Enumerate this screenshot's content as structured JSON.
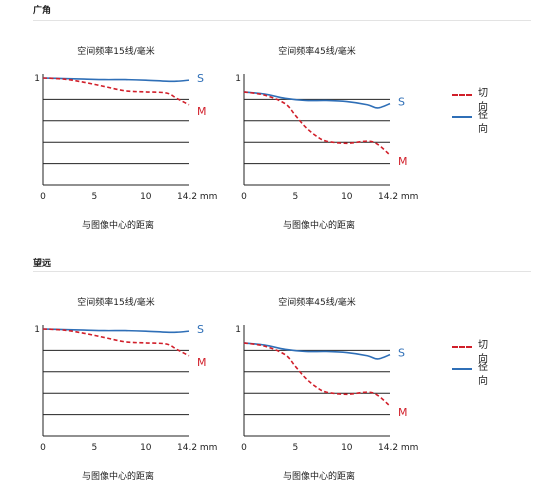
{
  "sections": [
    {
      "title": "广角",
      "legend": {
        "tangential": "切向",
        "sagittal": "径向"
      }
    },
    {
      "title": "望远",
      "legend": {
        "tangential": "切向",
        "sagittal": "径向"
      }
    }
  ],
  "colors": {
    "sagittal": "#2f6fb7",
    "tangential": "#d11f2a",
    "label_s": "#2f6fb7",
    "label_m": "#d11f2a",
    "grid": "#222222"
  },
  "chart_data": [
    {
      "type": "line",
      "section": "广角",
      "title": "空间频率15线/毫米",
      "xlabel": "与图像中心的距离",
      "xlim": [
        0,
        14.2
      ],
      "ylim": [
        0,
        1
      ],
      "y_tick_label": "1",
      "x_ticks": [
        "0",
        "5",
        "10",
        "14.2 mm"
      ],
      "grid_y": [
        0.2,
        0.4,
        0.6,
        0.8
      ],
      "series": [
        {
          "name": "S",
          "x": [
            0,
            2,
            4,
            6,
            8,
            10,
            12,
            13,
            14.2
          ],
          "y": [
            1.0,
            0.995,
            0.99,
            0.985,
            0.985,
            0.98,
            0.97,
            0.97,
            0.98
          ]
        },
        {
          "name": "M",
          "x": [
            0,
            2,
            4,
            6,
            8,
            10,
            12,
            13,
            14.2
          ],
          "y": [
            1.0,
            0.99,
            0.96,
            0.92,
            0.88,
            0.87,
            0.86,
            0.81,
            0.75
          ]
        }
      ]
    },
    {
      "type": "line",
      "section": "广角",
      "title": "空间频率45线/毫米",
      "xlabel": "与图像中心的距离",
      "xlim": [
        0,
        14.2
      ],
      "ylim": [
        0,
        1
      ],
      "y_tick_label": "1",
      "x_ticks": [
        "0",
        "5",
        "10",
        "14.2 mm"
      ],
      "grid_y": [
        0.2,
        0.4,
        0.6,
        0.8
      ],
      "series": [
        {
          "name": "S",
          "x": [
            0,
            2,
            4,
            6,
            8,
            10,
            12,
            13,
            14.2
          ],
          "y": [
            0.87,
            0.85,
            0.81,
            0.79,
            0.79,
            0.78,
            0.75,
            0.72,
            0.76
          ]
        },
        {
          "name": "M",
          "x": [
            0,
            2,
            4,
            5,
            6,
            7,
            8,
            10,
            12,
            13,
            14.2
          ],
          "y": [
            0.87,
            0.84,
            0.76,
            0.65,
            0.54,
            0.46,
            0.41,
            0.39,
            0.41,
            0.38,
            0.28
          ]
        }
      ]
    },
    {
      "type": "line",
      "section": "望远",
      "title": "空间频率15线/毫米",
      "xlabel": "与图像中心的距离",
      "xlim": [
        0,
        14.2
      ],
      "ylim": [
        0,
        1
      ],
      "y_tick_label": "1",
      "x_ticks": [
        "0",
        "5",
        "10",
        "14.2 mm"
      ],
      "grid_y": [
        0.2,
        0.4,
        0.6,
        0.8
      ],
      "series": [
        {
          "name": "S",
          "x": [
            0,
            2,
            4,
            6,
            8,
            10,
            12,
            13,
            14.2
          ],
          "y": [
            1.0,
            0.995,
            0.99,
            0.985,
            0.985,
            0.98,
            0.97,
            0.97,
            0.98
          ]
        },
        {
          "name": "M",
          "x": [
            0,
            2,
            4,
            6,
            8,
            10,
            12,
            13,
            14.2
          ],
          "y": [
            1.0,
            0.99,
            0.96,
            0.92,
            0.88,
            0.87,
            0.86,
            0.81,
            0.75
          ]
        }
      ]
    },
    {
      "type": "line",
      "section": "望远",
      "title": "空间频率45线/毫米",
      "xlabel": "与图像中心的距离",
      "xlim": [
        0,
        14.2
      ],
      "ylim": [
        0,
        1
      ],
      "y_tick_label": "1",
      "x_ticks": [
        "0",
        "5",
        "10",
        "14.2 mm"
      ],
      "grid_y": [
        0.2,
        0.4,
        0.6,
        0.8
      ],
      "series": [
        {
          "name": "S",
          "x": [
            0,
            2,
            4,
            6,
            8,
            10,
            12,
            13,
            14.2
          ],
          "y": [
            0.87,
            0.85,
            0.81,
            0.79,
            0.79,
            0.78,
            0.75,
            0.72,
            0.76
          ]
        },
        {
          "name": "M",
          "x": [
            0,
            2,
            4,
            5,
            6,
            7,
            8,
            10,
            12,
            13,
            14.2
          ],
          "y": [
            0.87,
            0.84,
            0.76,
            0.65,
            0.54,
            0.46,
            0.41,
            0.39,
            0.41,
            0.38,
            0.28
          ]
        }
      ]
    }
  ]
}
